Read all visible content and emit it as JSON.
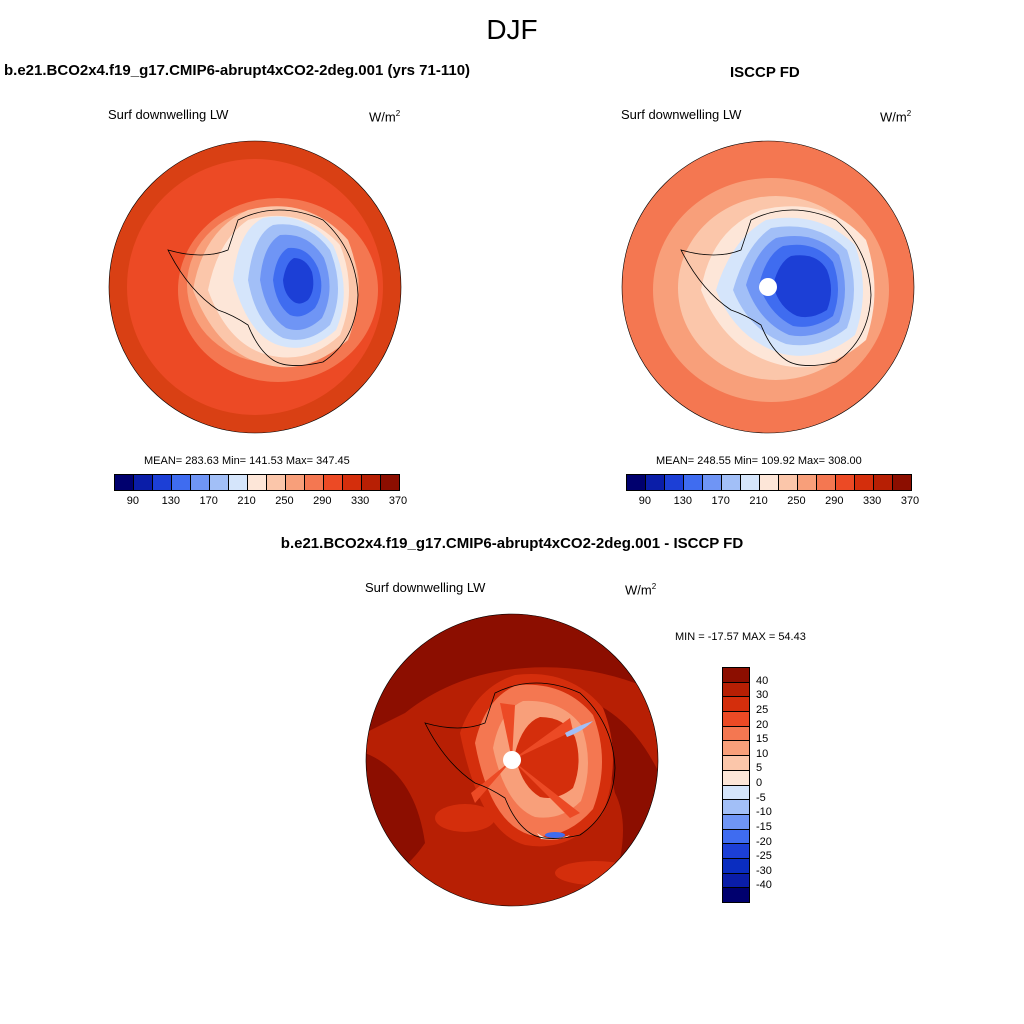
{
  "main_title": "DJF",
  "panels": [
    {
      "title": "b.e21.BCO2x4.f19_g17.CMIP6-abrupt4xCO2-2deg.001 (yrs 71-110)",
      "variable": "Surf downwelling LW",
      "units_base": "W/m",
      "units_exp": "2",
      "stats": "MEAN= 283.63  Min= 141.53  Max= 347.45"
    },
    {
      "title": "ISCCP FD",
      "variable": "Surf downwelling LW",
      "units_base": "W/m",
      "units_exp": "2",
      "stats": "MEAN= 248.55  Min= 109.92  Max= 308.00"
    },
    {
      "title": "b.e21.BCO2x4.f19_g17.CMIP6-abrupt4xCO2-2deg.001 - ISCCP FD",
      "variable": "Surf downwelling LW",
      "units_base": "W/m",
      "units_exp": "2",
      "stats": "MIN = -17.57 MAX =  54.43"
    }
  ],
  "colorbar_abs": {
    "colors": [
      "#00006e",
      "#0a1da8",
      "#1c3fd6",
      "#3f6cf0",
      "#6f95f5",
      "#a2bff7",
      "#d5e5fb",
      "#fde6d8",
      "#fbc6aa",
      "#f89f7a",
      "#f47751",
      "#ec4a25",
      "#d42e0c",
      "#b71f04",
      "#8c0e00"
    ],
    "tick_labels": [
      "90",
      "130",
      "170",
      "210",
      "250",
      "290",
      "330",
      "370"
    ]
  },
  "colorbar_diff": {
    "colors": [
      "#8c0e00",
      "#b71f04",
      "#d42e0c",
      "#ec4a25",
      "#f47751",
      "#f89f7a",
      "#fbc6aa",
      "#fde6d8",
      "#d5e5fb",
      "#a2bff7",
      "#6f95f5",
      "#3f6cf0",
      "#1c3fd6",
      "#0a2dc0",
      "#0a1da8",
      "#00006e"
    ],
    "tick_labels": [
      "40",
      "30",
      "25",
      "20",
      "15",
      "10",
      "5",
      "0",
      "-5",
      "-10",
      "-15",
      "-20",
      "-25",
      "-30",
      "-40"
    ]
  }
}
